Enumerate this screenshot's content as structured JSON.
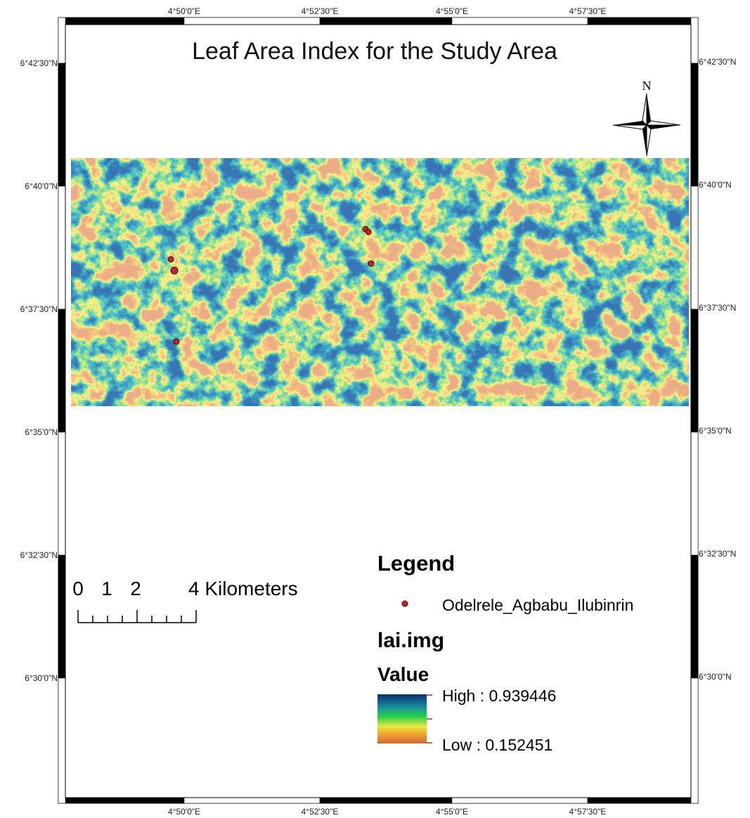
{
  "title": "Leaf Area Index for the Study Area",
  "north_arrow": "N",
  "grid_labels": {
    "top": [
      "4°50'0\"E",
      "4°52'30\"E",
      "4°55'0\"E",
      "4°57'30\"E"
    ],
    "bottom": [
      "4°50'0\"E",
      "4°52'30\"E",
      "4°55'0\"E",
      "4°57'30\"E"
    ],
    "left": [
      "6°42'30\"N",
      "6°40'0\"N",
      "6°37'30\"N",
      "6°35'0\"N",
      "6°32'30\"N",
      "6°30'0\"N"
    ],
    "right": [
      "6°42'30\"N",
      "6°40'0\"N",
      "6°37'30\"N",
      "6°35'0\"N",
      "6°32'30\"N",
      "6°30'0\"N"
    ]
  },
  "scale_bar": {
    "labels": [
      "0",
      "1",
      "2",
      "4 Kilometers"
    ]
  },
  "legend": {
    "title": "Legend",
    "points_layer": "Odelrele_Agbabu_Ilubinrin",
    "raster_layer": "lai.img",
    "field": "Value",
    "high": "High : 0.939446",
    "low": "Low : 0.152451"
  }
}
